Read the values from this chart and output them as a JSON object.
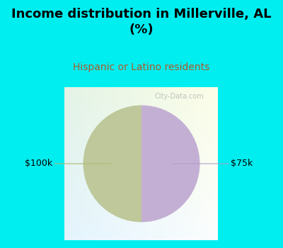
{
  "title": "Income distribution in Millerville, AL\n(%)",
  "subtitle": "Hispanic or Latino residents",
  "slices": [
    50,
    50
  ],
  "labels": [
    "$100k",
    "$75k"
  ],
  "colors": [
    "#bec89a",
    "#c4afd4"
  ],
  "background_color": "#00eef0",
  "chart_box_color": "#e8f5ef",
  "title_fontsize": 13,
  "subtitle_fontsize": 10,
  "subtitle_color": "#b05a2a",
  "label_fontsize": 9,
  "startangle": 90,
  "watermark": "City-Data.com",
  "line_color_left": "#b0b878",
  "line_color_right": "#b0a0cc"
}
